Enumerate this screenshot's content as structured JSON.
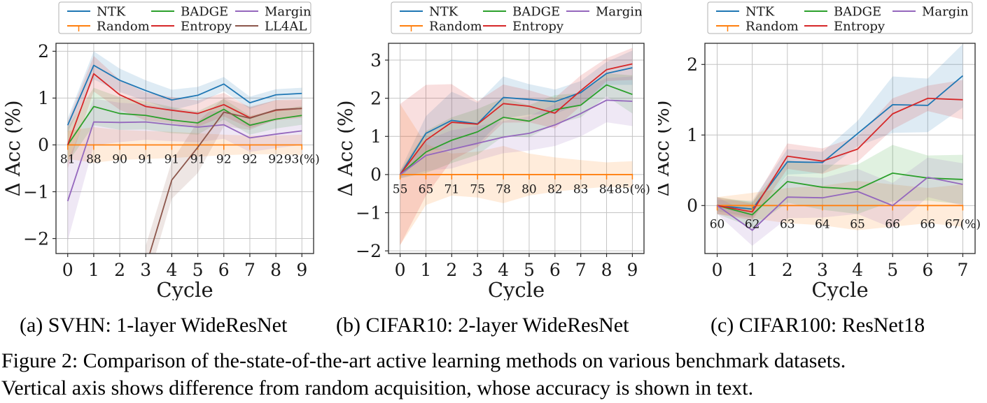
{
  "figure": {
    "subcaptions": [
      "(a) SVHN: 1-layer WideResNet",
      "(b) CIFAR10: 2-layer WideResNet",
      "(c) CIFAR100: ResNet18"
    ],
    "caption_lines": [
      "Figure 2: Comparison of the-state-of-the-art active learning methods on various benchmark datasets.",
      "Vertical axis shows difference from random acquisition, whose accuracy is shown in text."
    ]
  },
  "colors": {
    "NTK": "#1f77b4",
    "Random": "#ff7f0e",
    "BADGE": "#2ca02c",
    "Entropy": "#d62728",
    "Margin": "#9467bd",
    "LL4AL": "#8c564b"
  },
  "chart_data": [
    {
      "type": "line",
      "dataset": "SVHN",
      "xlabel": "Cycle",
      "ylabel": "Δ Acc (%)",
      "x": [
        0,
        1,
        2,
        3,
        4,
        5,
        6,
        7,
        8,
        9
      ],
      "xlim": [
        -0.45,
        9.45
      ],
      "ylim": [
        -2.32,
        2.17
      ],
      "yticks": [
        -2,
        -1,
        0,
        1,
        2
      ],
      "grid": true,
      "legend_position": "top",
      "accuracy_labels": [
        "81",
        "88",
        "90",
        "91",
        "91",
        "91",
        "92",
        "92",
        "92",
        "93(%)"
      ],
      "accuracy_label_y": -0.3,
      "series": [
        {
          "name": "NTK",
          "values": [
            0.42,
            1.7,
            1.38,
            1.16,
            0.96,
            1.06,
            1.3,
            0.9,
            1.07,
            1.1
          ],
          "band_halfwidth": [
            0.15,
            0.3,
            0.25,
            0.22,
            0.22,
            0.18,
            0.15,
            0.13,
            0.12,
            0.12
          ]
        },
        {
          "name": "Random",
          "marker": "tick",
          "values": [
            0,
            0,
            0,
            0,
            0,
            0,
            0,
            0,
            0,
            0
          ],
          "band_halfwidth": [
            0.3,
            0.38,
            0.32,
            0.3,
            0.28,
            0.25,
            0.22,
            0.2,
            0.2,
            0.22
          ]
        },
        {
          "name": "BADGE",
          "values": [
            0,
            0.82,
            0.67,
            0.63,
            0.53,
            0.47,
            0.76,
            0.42,
            0.55,
            0.63
          ],
          "band_halfwidth": [
            0.38,
            0.4,
            0.35,
            0.3,
            0.28,
            0.25,
            0.22,
            0.2,
            0.2,
            0.2
          ]
        },
        {
          "name": "Entropy",
          "values": [
            0,
            1.52,
            1.07,
            0.82,
            0.74,
            0.67,
            0.86,
            0.58,
            0.74,
            0.78
          ],
          "band_halfwidth": [
            0.5,
            0.38,
            0.32,
            0.3,
            0.28,
            0.28,
            0.25,
            0.22,
            0.22,
            0.2
          ]
        },
        {
          "name": "Margin",
          "values": [
            -1.2,
            0.49,
            0.48,
            0.49,
            0.43,
            0.38,
            0.43,
            0.15,
            0.23,
            0.3
          ],
          "band_halfwidth": [
            0.85,
            0.5,
            0.42,
            0.38,
            0.35,
            0.32,
            0.3,
            0.3,
            0.3,
            0.3
          ]
        },
        {
          "name": "LL4AL",
          "values": [
            null,
            null,
            null,
            -2.6,
            -0.75,
            -0.05,
            0.7,
            0.57,
            0.75,
            0.78
          ],
          "band_halfwidth": [
            null,
            null,
            null,
            0.45,
            0.4,
            0.55,
            0.3,
            0.25,
            0.2,
            0.18
          ]
        }
      ]
    },
    {
      "type": "line",
      "dataset": "CIFAR10",
      "xlabel": "Cycle",
      "ylabel": "Δ Acc (%)",
      "x": [
        0,
        1,
        2,
        3,
        4,
        5,
        6,
        7,
        8,
        9
      ],
      "xlim": [
        -0.45,
        9.45
      ],
      "ylim": [
        -2.07,
        3.44
      ],
      "yticks": [
        -2,
        -1,
        0,
        1,
        2,
        3
      ],
      "grid": true,
      "legend_position": "top",
      "accuracy_labels": [
        "55",
        "65",
        "71",
        "75",
        "78",
        "80",
        "82",
        "83",
        "84",
        "85(%)"
      ],
      "accuracy_label_y": -0.38,
      "series": [
        {
          "name": "NTK",
          "values": [
            0,
            1.08,
            1.42,
            1.33,
            2.02,
            1.97,
            1.91,
            2.15,
            2.65,
            2.8
          ],
          "band_halfwidth": [
            0.1,
            0.45,
            0.75,
            0.55,
            0.55,
            0.4,
            0.32,
            0.3,
            0.3,
            0.45
          ]
        },
        {
          "name": "Random",
          "marker": "tick",
          "values": [
            0,
            0,
            0,
            0,
            0,
            0,
            0,
            0,
            0,
            0
          ],
          "band_halfwidth": [
            1.85,
            0.8,
            0.55,
            0.6,
            0.75,
            0.55,
            0.45,
            0.38,
            0.32,
            0.35
          ]
        },
        {
          "name": "BADGE",
          "values": [
            0,
            0.59,
            0.9,
            1.12,
            1.5,
            1.4,
            1.7,
            1.82,
            2.35,
            2.1
          ],
          "band_halfwidth": [
            0.1,
            0.55,
            0.6,
            0.6,
            0.5,
            0.42,
            0.38,
            0.32,
            0.3,
            0.5
          ]
        },
        {
          "name": "Entropy",
          "values": [
            0,
            0.9,
            1.37,
            1.32,
            1.86,
            1.79,
            1.61,
            2.2,
            2.75,
            2.9
          ],
          "band_halfwidth": [
            1.85,
            1.45,
            1.0,
            0.6,
            0.5,
            0.42,
            0.4,
            0.4,
            0.3,
            0.42
          ]
        },
        {
          "name": "Margin",
          "values": [
            0,
            0.5,
            0.66,
            0.82,
            0.98,
            1.08,
            1.3,
            1.6,
            1.95,
            1.92
          ],
          "band_halfwidth": [
            0.1,
            0.4,
            0.5,
            0.45,
            0.42,
            0.45,
            0.55,
            0.6,
            0.58,
            0.65
          ]
        }
      ]
    },
    {
      "type": "line",
      "dataset": "CIFAR100",
      "xlabel": "Cycle",
      "ylabel": "Δ Acc (%)",
      "x": [
        0,
        1,
        2,
        3,
        4,
        5,
        6,
        7
      ],
      "xlim": [
        -0.35,
        7.35
      ],
      "ylim": [
        -0.68,
        2.3
      ],
      "yticks": [
        0,
        1,
        2
      ],
      "grid": true,
      "legend_position": "top",
      "accuracy_labels": [
        "60",
        "62",
        "63",
        "64",
        "65",
        "66",
        "66",
        "67(%)"
      ],
      "accuracy_label_y": -0.26,
      "series": [
        {
          "name": "NTK",
          "values": [
            0,
            -0.05,
            0.62,
            0.61,
            1.02,
            1.43,
            1.42,
            1.84
          ],
          "band_halfwidth": [
            0.08,
            0.12,
            0.18,
            0.15,
            0.18,
            0.4,
            0.38,
            0.45
          ]
        },
        {
          "name": "Random",
          "marker": "tick",
          "values": [
            0,
            0,
            0,
            0,
            0,
            0,
            0,
            0
          ],
          "band_halfwidth": [
            0.12,
            0.18,
            0.25,
            0.28,
            0.35,
            0.3,
            0.25,
            0.3
          ]
        },
        {
          "name": "BADGE",
          "values": [
            0,
            -0.13,
            0.34,
            0.26,
            0.23,
            0.46,
            0.39,
            0.37
          ],
          "band_halfwidth": [
            0.12,
            0.18,
            0.3,
            0.32,
            0.35,
            0.4,
            0.32,
            0.35
          ]
        },
        {
          "name": "Entropy",
          "values": [
            0,
            -0.09,
            0.7,
            0.63,
            0.8,
            1.3,
            1.52,
            1.5
          ],
          "band_halfwidth": [
            0.12,
            0.12,
            0.18,
            0.18,
            0.18,
            0.22,
            0.18,
            0.28
          ]
        },
        {
          "name": "Margin",
          "values": [
            0,
            -0.35,
            0.12,
            0.11,
            0.2,
            0.0,
            0.4,
            0.3
          ],
          "band_halfwidth": [
            0.12,
            0.22,
            0.3,
            0.28,
            0.32,
            0.32,
            0.28,
            0.3
          ]
        }
      ]
    }
  ]
}
